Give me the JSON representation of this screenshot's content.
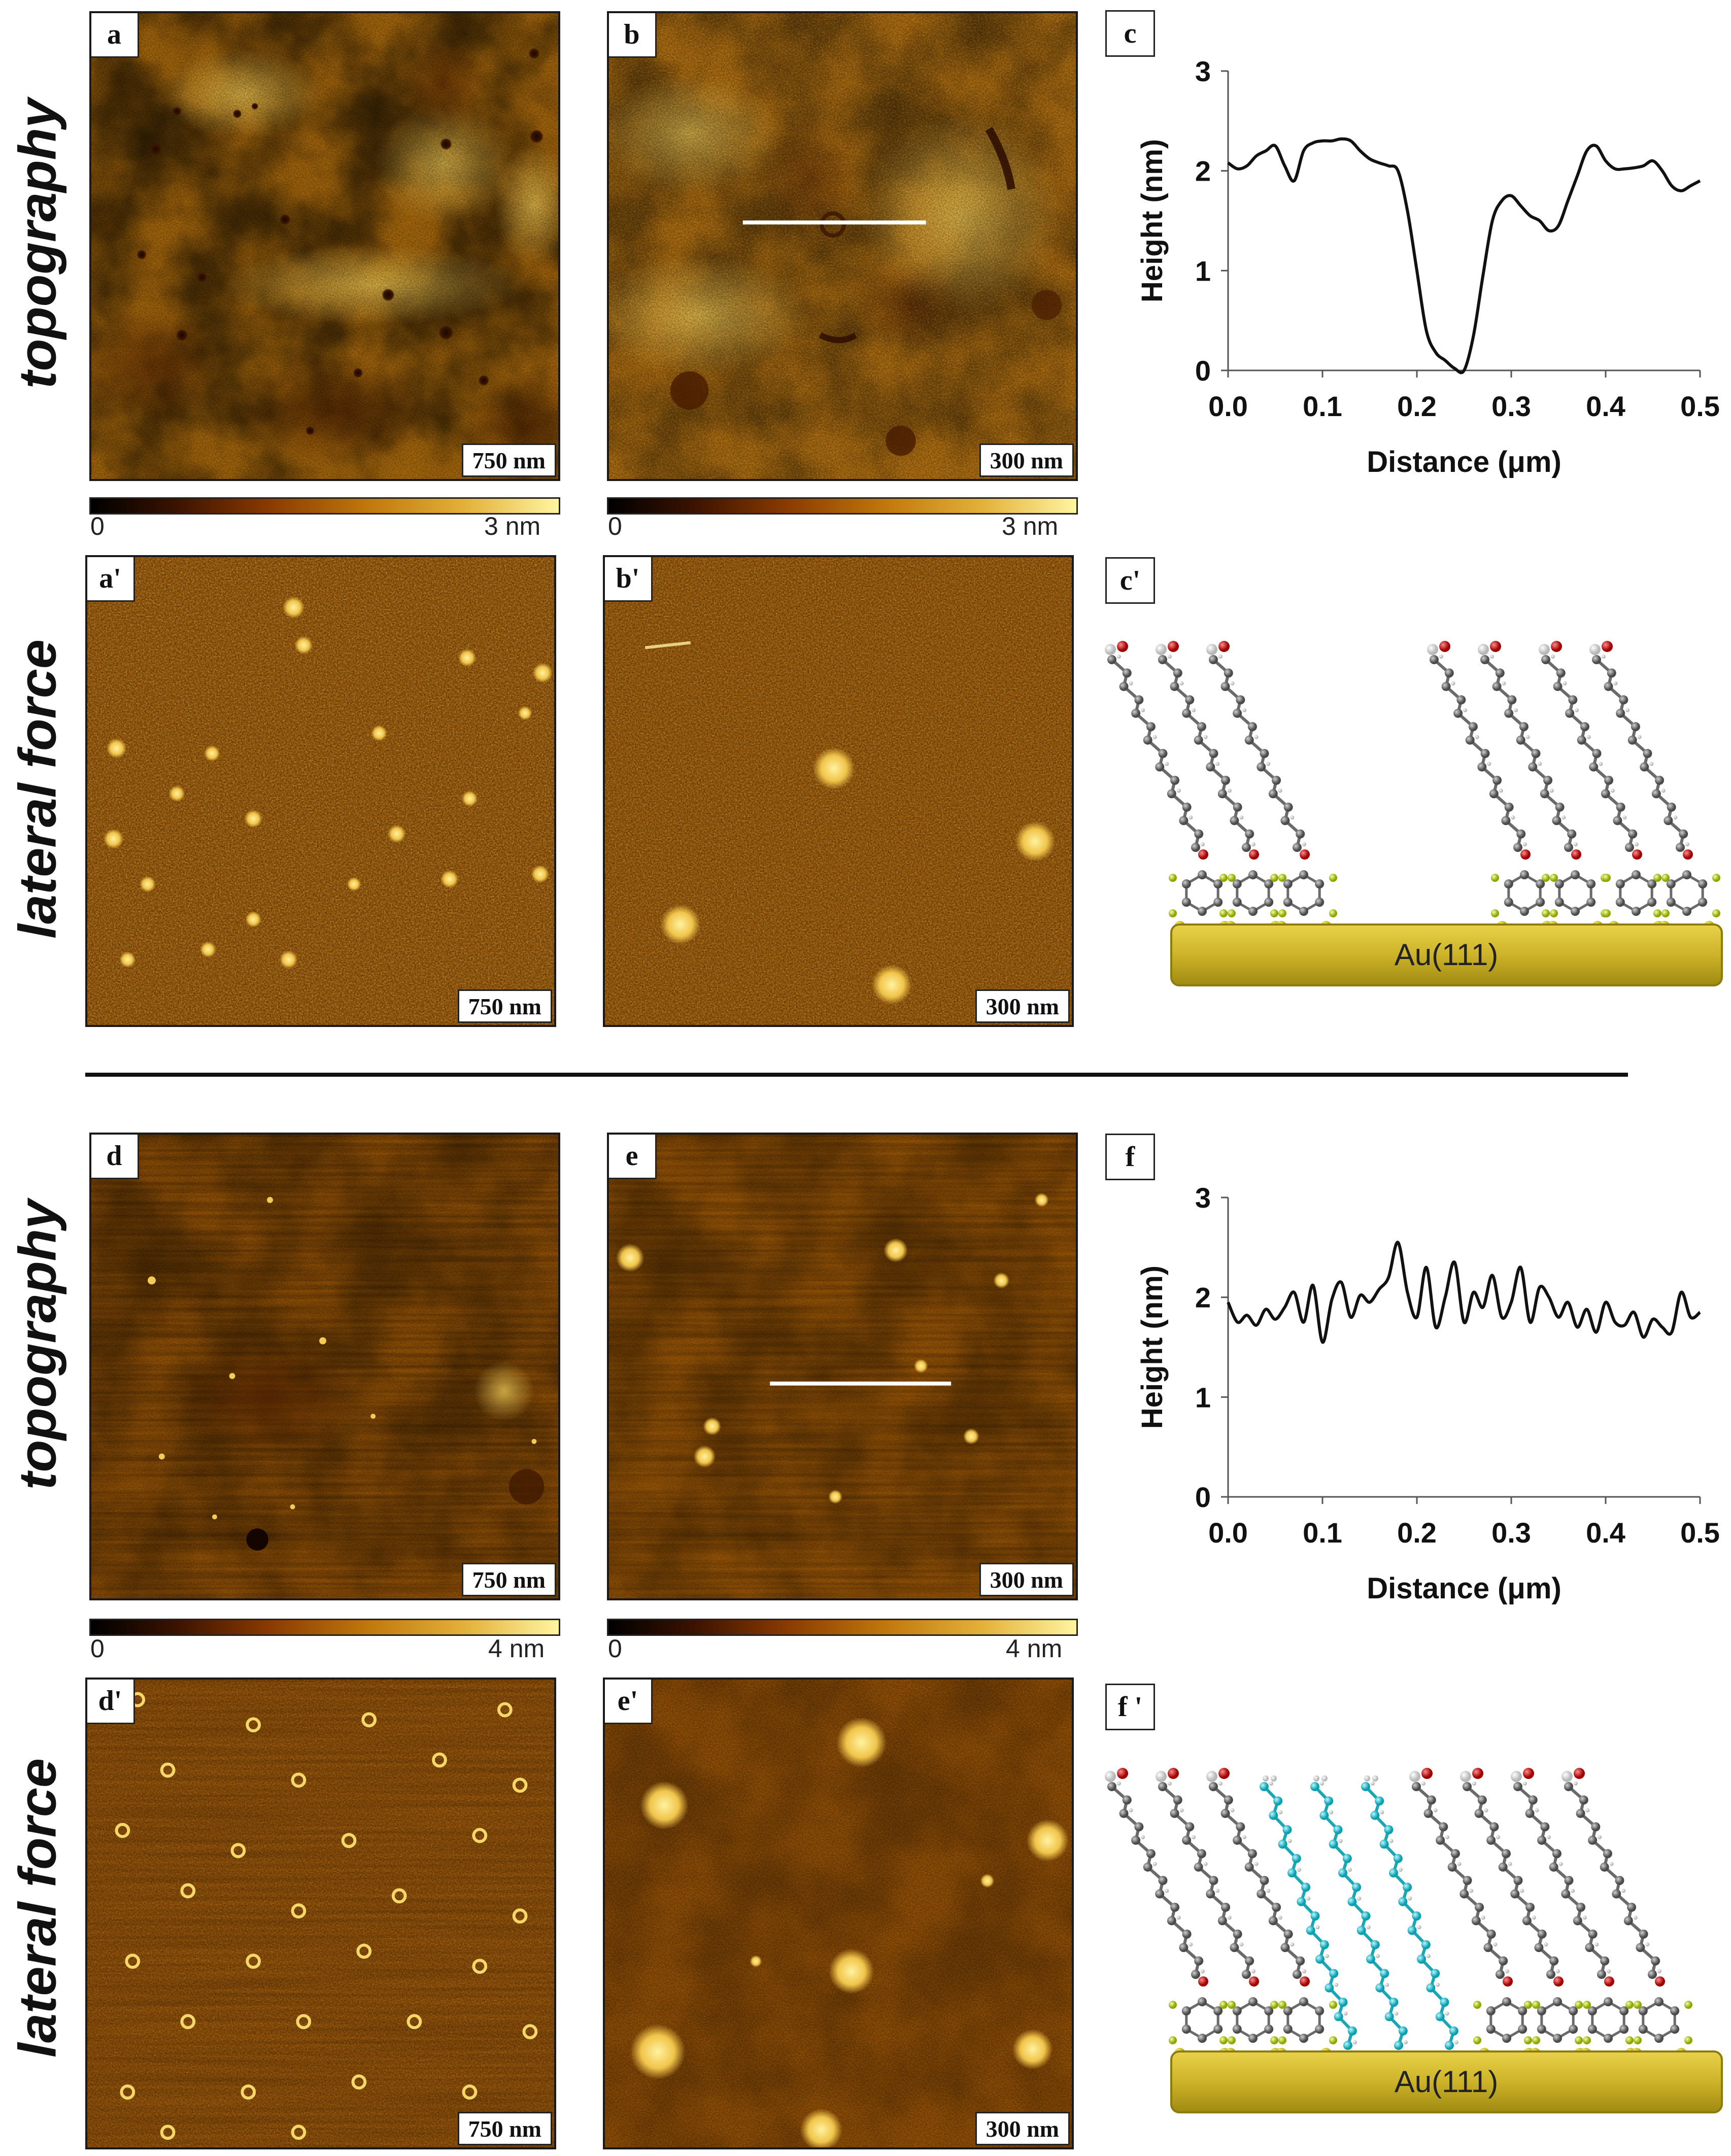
{
  "row_labels": {
    "topography": "topography",
    "lateral_force": "lateral force"
  },
  "panels": [
    {
      "id": "a",
      "label": "a",
      "scale": "750 nm"
    },
    {
      "id": "b",
      "label": "b",
      "scale": "300 nm"
    },
    {
      "id": "a2",
      "label": "a'",
      "scale": "750 nm"
    },
    {
      "id": "b2",
      "label": "b'",
      "scale": "300 nm"
    },
    {
      "id": "d",
      "label": "d",
      "scale": "750 nm"
    },
    {
      "id": "e",
      "label": "e",
      "scale": "300 nm"
    },
    {
      "id": "d2",
      "label": "d'",
      "scale": "750 nm"
    },
    {
      "id": "e2",
      "label": "e'",
      "scale": "300 nm"
    }
  ],
  "side_labels": {
    "c": "c",
    "c2": "c'",
    "f": "f",
    "f2": "f '"
  },
  "colorbars": {
    "top_left": {
      "min": "0",
      "max": "3 nm"
    },
    "top_right": {
      "min": "0",
      "max": "3 nm"
    },
    "bottom_left": {
      "min": "0",
      "max": "4 nm"
    },
    "bottom_right": {
      "min": "0",
      "max": "4 nm"
    }
  },
  "substrate_label": "Au(111)",
  "colors": {
    "afm_dark": "#5a2600",
    "afm_mid": "#b36a0a",
    "afm_light": "#f2cf58",
    "gold": "#d4b82c",
    "cyan": "#22c8d8"
  },
  "chart_data": [
    {
      "type": "line",
      "title": "",
      "xlabel": "Distance (μm)",
      "ylabel": "Height (nm)",
      "xlim": [
        0,
        0.5
      ],
      "ylim": [
        0,
        3
      ],
      "xticks": [
        "0.0",
        "0.1",
        "0.2",
        "0.3",
        "0.4",
        "0.5"
      ],
      "yticks": [
        "0",
        "1",
        "2",
        "3"
      ],
      "x": [
        0,
        0.01,
        0.02,
        0.03,
        0.04,
        0.05,
        0.06,
        0.07,
        0.08,
        0.09,
        0.1,
        0.11,
        0.12,
        0.13,
        0.14,
        0.15,
        0.16,
        0.17,
        0.18,
        0.19,
        0.2,
        0.21,
        0.22,
        0.23,
        0.24,
        0.25,
        0.26,
        0.27,
        0.28,
        0.29,
        0.3,
        0.31,
        0.32,
        0.33,
        0.34,
        0.35,
        0.36,
        0.37,
        0.38,
        0.39,
        0.4,
        0.41,
        0.42,
        0.43,
        0.44,
        0.45,
        0.46,
        0.47,
        0.48,
        0.49,
        0.5
      ],
      "values": [
        2.08,
        2.02,
        2.05,
        2.15,
        2.2,
        2.25,
        2.05,
        1.9,
        2.2,
        2.28,
        2.3,
        2.3,
        2.32,
        2.3,
        2.2,
        2.12,
        2.08,
        2.05,
        2.0,
        1.6,
        1.0,
        0.4,
        0.18,
        0.1,
        0.02,
        0.0,
        0.35,
        0.95,
        1.5,
        1.7,
        1.75,
        1.65,
        1.55,
        1.5,
        1.4,
        1.45,
        1.7,
        1.95,
        2.2,
        2.25,
        2.1,
        2.02,
        2.02,
        2.03,
        2.05,
        2.1,
        2.0,
        1.85,
        1.8,
        1.85,
        1.9
      ]
    },
    {
      "type": "line",
      "title": "",
      "xlabel": "Distance (μm)",
      "ylabel": "Height (nm)",
      "xlim": [
        0,
        0.5
      ],
      "ylim": [
        0,
        3
      ],
      "xticks": [
        "0.0",
        "0.1",
        "0.2",
        "0.3",
        "0.4",
        "0.5"
      ],
      "yticks": [
        "0",
        "1",
        "2",
        "3"
      ],
      "x": [
        0,
        0.01,
        0.02,
        0.03,
        0.04,
        0.05,
        0.06,
        0.07,
        0.08,
        0.09,
        0.1,
        0.11,
        0.12,
        0.13,
        0.14,
        0.15,
        0.16,
        0.17,
        0.18,
        0.19,
        0.2,
        0.21,
        0.22,
        0.23,
        0.24,
        0.25,
        0.26,
        0.27,
        0.28,
        0.29,
        0.3,
        0.31,
        0.32,
        0.33,
        0.34,
        0.35,
        0.36,
        0.37,
        0.38,
        0.39,
        0.4,
        0.41,
        0.42,
        0.43,
        0.44,
        0.45,
        0.46,
        0.47,
        0.48,
        0.49,
        0.5
      ],
      "values": [
        1.95,
        1.75,
        1.82,
        1.72,
        1.88,
        1.78,
        1.9,
        2.05,
        1.75,
        2.12,
        1.55,
        1.98,
        2.15,
        1.8,
        2.02,
        1.95,
        2.08,
        2.2,
        2.55,
        2.05,
        1.8,
        2.3,
        1.7,
        2.0,
        2.35,
        1.75,
        2.05,
        1.9,
        2.22,
        1.8,
        1.95,
        2.3,
        1.75,
        2.1,
        2.0,
        1.8,
        1.95,
        1.7,
        1.88,
        1.65,
        1.95,
        1.75,
        1.72,
        1.85,
        1.6,
        1.78,
        1.7,
        1.65,
        2.05,
        1.8,
        1.85
      ]
    }
  ]
}
